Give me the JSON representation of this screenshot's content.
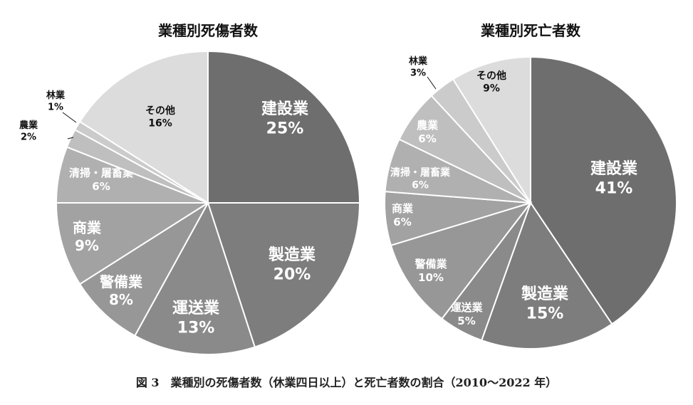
{
  "caption": "図 3　業種別の死傷者数（休業四日以上）と死亡者数の割合（2010〜2022 年）",
  "chart_data": [
    {
      "type": "pie",
      "title": "業種別死傷者数",
      "unit": "%",
      "slices": [
        {
          "label": "建設業",
          "value": 25,
          "color": "#6e6e6e"
        },
        {
          "label": "製造業",
          "value": 20,
          "color": "#7d7d7d"
        },
        {
          "label": "運送業",
          "value": 13,
          "color": "#8a8a8a"
        },
        {
          "label": "警備業",
          "value": 8,
          "color": "#979797"
        },
        {
          "label": "商業",
          "value": 9,
          "color": "#a2a2a2"
        },
        {
          "label": "清掃・屠畜業",
          "value": 6,
          "color": "#b0b0b0"
        },
        {
          "label": "農業",
          "value": 2,
          "color": "#bfbfbf"
        },
        {
          "label": "林業",
          "value": 1,
          "color": "#cbcbcb"
        },
        {
          "label": "その他",
          "value": 16,
          "color": "#dcdcdc"
        }
      ]
    },
    {
      "type": "pie",
      "title": "業種別死亡者数",
      "unit": "%",
      "slices": [
        {
          "label": "建設業",
          "value": 41,
          "color": "#6e6e6e"
        },
        {
          "label": "製造業",
          "value": 15,
          "color": "#7d7d7d"
        },
        {
          "label": "運送業",
          "value": 5,
          "color": "#8a8a8a"
        },
        {
          "label": "警備業",
          "value": 10,
          "color": "#979797"
        },
        {
          "label": "商業",
          "value": 6,
          "color": "#a2a2a2"
        },
        {
          "label": "清掃・屠畜業",
          "value": 6,
          "color": "#b0b0b0"
        },
        {
          "label": "農業",
          "value": 6,
          "color": "#bfbfbf"
        },
        {
          "label": "林業",
          "value": 3,
          "color": "#cbcbcb"
        },
        {
          "label": "その他",
          "value": 9,
          "color": "#dcdcdc"
        }
      ]
    }
  ]
}
